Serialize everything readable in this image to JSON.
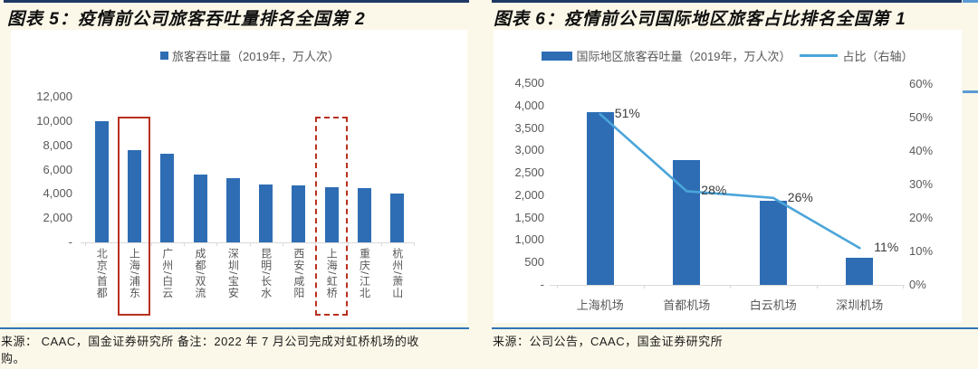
{
  "colors": {
    "background": "#FCF8E9",
    "chart_background": "#FFFFFF",
    "bar_blue": "#2E6DB4",
    "line_blue": "#4BA5DA",
    "highlight_red": "#B8301F",
    "top_rule": "#203864",
    "source_rule": "#2E75B6",
    "axis_text": "#595959",
    "axis_line": "#D9D9D9",
    "data_label_text": "#3B3B3B"
  },
  "chart_data": [
    {
      "type": "bar",
      "title": "图表 5：疫情前公司旅客吞吐量排名全国第 2",
      "legend": [
        {
          "label": "旅客吞吐量（2019年，万人次）",
          "marker": "square"
        }
      ],
      "categories": [
        "北京/首都",
        "上海/浦东",
        "广州/白云",
        "成都/双流",
        "深圳/宝安",
        "昆明/长水",
        "西安/咸阳",
        "上海/虹桥",
        "重庆/江北",
        "杭州/萧山"
      ],
      "values": [
        10001,
        7615,
        7338,
        5586,
        5293,
        4808,
        4722,
        4564,
        4479,
        4011
      ],
      "ylim": [
        0,
        12000
      ],
      "ytick_values": [
        12000,
        10000,
        8000,
        6000,
        4000,
        2000,
        0
      ],
      "yticks": [
        "12,000",
        "10,000",
        "8,000",
        "6,000",
        "4,000",
        "2,000",
        "-"
      ],
      "grid": false,
      "legend_position": "top",
      "highlight_boxes": [
        {
          "category": "上海/浦东",
          "style": "solid"
        },
        {
          "category": "上海/虹桥",
          "style": "dashed"
        }
      ],
      "source": "来源： CAAC，国金证券研究所  备注：2022 年 7 月公司完成对虹桥机场的收购。"
    },
    {
      "type": "bar+line",
      "title": "图表 6：疫情前公司国际地区旅客占比排名全国第 1",
      "categories": [
        "上海机场",
        "首都机场",
        "白云机场",
        "深圳机场"
      ],
      "series": [
        {
          "name": "国际地区旅客吞吐量（2019年，万人次）",
          "type": "bar",
          "axis": "left",
          "values": [
            3851,
            2780,
            1871,
            600
          ]
        },
        {
          "name": "占比（右轴）",
          "type": "line",
          "axis": "right",
          "values": [
            51,
            28,
            26,
            11
          ],
          "unit": "%",
          "labels": [
            "51%",
            "28%",
            "26%",
            "11%"
          ]
        }
      ],
      "ylim_left": [
        0,
        4500
      ],
      "ytick_values_left": [
        4500,
        4000,
        3500,
        3000,
        2500,
        2000,
        1500,
        1000,
        500,
        0
      ],
      "yticks_left": [
        "4,500",
        "4,000",
        "3,500",
        "3,000",
        "2,500",
        "2,000",
        "1,500",
        "1,000",
        "500",
        "-"
      ],
      "ylim_right": [
        0,
        60
      ],
      "ytick_values_right": [
        60,
        50,
        40,
        30,
        20,
        10,
        0
      ],
      "yticks_right": [
        "60%",
        "50%",
        "40%",
        "30%",
        "20%",
        "10%",
        "0%"
      ],
      "grid": false,
      "legend_position": "top",
      "source": "来源：公司公告，CAAC，国金证券研究所"
    }
  ]
}
